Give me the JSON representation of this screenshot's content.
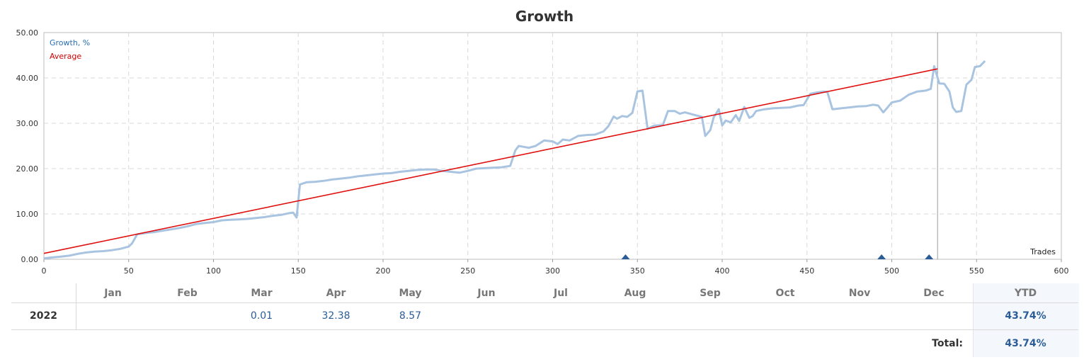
{
  "chart_data": {
    "type": "line",
    "title": "Growth",
    "xlabel": "Trades",
    "ylabel": "",
    "xlim": [
      0,
      600
    ],
    "ylim": [
      0,
      50
    ],
    "x_ticks": [
      0,
      50,
      100,
      150,
      200,
      250,
      300,
      350,
      400,
      450,
      500,
      550,
      600
    ],
    "y_ticks": [
      0,
      10,
      20,
      30,
      40,
      50
    ],
    "grid": true,
    "legend_position": "top-left",
    "end_marker_x": 527,
    "series": [
      {
        "name": "Growth, %",
        "color": "#a9c4e0",
        "points": [
          [
            0,
            0.2
          ],
          [
            5,
            0.4
          ],
          [
            10,
            0.6
          ],
          [
            15,
            0.8
          ],
          [
            20,
            1.2
          ],
          [
            25,
            1.5
          ],
          [
            30,
            1.7
          ],
          [
            35,
            1.8
          ],
          [
            40,
            2.0
          ],
          [
            45,
            2.3
          ],
          [
            50,
            2.8
          ],
          [
            52,
            3.5
          ],
          [
            55,
            5.5
          ],
          [
            60,
            5.8
          ],
          [
            65,
            6.0
          ],
          [
            70,
            6.3
          ],
          [
            75,
            6.6
          ],
          [
            80,
            6.9
          ],
          [
            85,
            7.3
          ],
          [
            90,
            7.8
          ],
          [
            95,
            8.0
          ],
          [
            100,
            8.2
          ],
          [
            105,
            8.6
          ],
          [
            110,
            8.7
          ],
          [
            115,
            8.8
          ],
          [
            120,
            8.9
          ],
          [
            125,
            9.1
          ],
          [
            130,
            9.3
          ],
          [
            135,
            9.6
          ],
          [
            140,
            9.8
          ],
          [
            145,
            10.2
          ],
          [
            147,
            10.3
          ],
          [
            149,
            9.2
          ],
          [
            151,
            16.5
          ],
          [
            155,
            17.0
          ],
          [
            160,
            17.1
          ],
          [
            165,
            17.3
          ],
          [
            170,
            17.6
          ],
          [
            175,
            17.8
          ],
          [
            180,
            18.0
          ],
          [
            185,
            18.3
          ],
          [
            190,
            18.5
          ],
          [
            195,
            18.7
          ],
          [
            200,
            18.9
          ],
          [
            205,
            19.0
          ],
          [
            210,
            19.3
          ],
          [
            215,
            19.5
          ],
          [
            220,
            19.7
          ],
          [
            225,
            19.8
          ],
          [
            230,
            19.8
          ],
          [
            235,
            19.5
          ],
          [
            240,
            19.3
          ],
          [
            245,
            19.1
          ],
          [
            250,
            19.5
          ],
          [
            255,
            20.0
          ],
          [
            260,
            20.1
          ],
          [
            265,
            20.2
          ],
          [
            270,
            20.3
          ],
          [
            275,
            20.6
          ],
          [
            278,
            24.0
          ],
          [
            280,
            25.0
          ],
          [
            283,
            24.8
          ],
          [
            286,
            24.6
          ],
          [
            290,
            25.0
          ],
          [
            295,
            26.2
          ],
          [
            300,
            26.0
          ],
          [
            303,
            25.4
          ],
          [
            306,
            26.4
          ],
          [
            310,
            26.2
          ],
          [
            315,
            27.2
          ],
          [
            320,
            27.4
          ],
          [
            325,
            27.5
          ],
          [
            330,
            28.2
          ],
          [
            333,
            29.4
          ],
          [
            336,
            31.5
          ],
          [
            338,
            31.0
          ],
          [
            341,
            31.6
          ],
          [
            344,
            31.4
          ],
          [
            347,
            32.3
          ],
          [
            350,
            37.0
          ],
          [
            353,
            37.2
          ],
          [
            356,
            28.8
          ],
          [
            360,
            29.5
          ],
          [
            365,
            29.6
          ],
          [
            368,
            32.7
          ],
          [
            372,
            32.7
          ],
          [
            375,
            32.1
          ],
          [
            378,
            32.4
          ],
          [
            382,
            32.0
          ],
          [
            385,
            31.7
          ],
          [
            388,
            31.4
          ],
          [
            390,
            27.2
          ],
          [
            393,
            28.5
          ],
          [
            395,
            31.3
          ],
          [
            398,
            33.1
          ],
          [
            400,
            29.5
          ],
          [
            402,
            30.6
          ],
          [
            405,
            30.2
          ],
          [
            408,
            31.8
          ],
          [
            410,
            30.5
          ],
          [
            413,
            33.6
          ],
          [
            416,
            31.2
          ],
          [
            418,
            31.6
          ],
          [
            420,
            32.7
          ],
          [
            425,
            33.1
          ],
          [
            430,
            33.3
          ],
          [
            435,
            33.4
          ],
          [
            440,
            33.5
          ],
          [
            445,
            33.9
          ],
          [
            448,
            34.0
          ],
          [
            452,
            36.5
          ],
          [
            456,
            36.8
          ],
          [
            460,
            37.0
          ],
          [
            462,
            36.9
          ],
          [
            465,
            33.1
          ],
          [
            470,
            33.3
          ],
          [
            475,
            33.5
          ],
          [
            480,
            33.7
          ],
          [
            485,
            33.8
          ],
          [
            489,
            34.1
          ],
          [
            492,
            33.9
          ],
          [
            495,
            32.4
          ],
          [
            498,
            33.7
          ],
          [
            500,
            34.6
          ],
          [
            505,
            35.0
          ],
          [
            510,
            36.3
          ],
          [
            515,
            37.0
          ],
          [
            520,
            37.2
          ],
          [
            523,
            37.6
          ],
          [
            525,
            42.6
          ],
          [
            528,
            38.8
          ],
          [
            531,
            38.7
          ],
          [
            534,
            37.0
          ],
          [
            536,
            33.5
          ],
          [
            538,
            32.5
          ],
          [
            541,
            32.7
          ],
          [
            544,
            38.5
          ],
          [
            547,
            39.6
          ],
          [
            549,
            42.4
          ],
          [
            552,
            42.6
          ],
          [
            555,
            43.74
          ]
        ]
      },
      {
        "name": "Average",
        "color": "#e01010",
        "points": [
          [
            0,
            1.3
          ],
          [
            527,
            42.0
          ]
        ]
      }
    ],
    "trade_markers": [
      343,
      494,
      522
    ]
  },
  "table": {
    "months": [
      "Jan",
      "Feb",
      "Mar",
      "Apr",
      "May",
      "Jun",
      "Jul",
      "Aug",
      "Sep",
      "Oct",
      "Nov",
      "Dec"
    ],
    "ytd_header": "YTD",
    "rows": [
      {
        "year": "2022",
        "values": [
          "",
          "",
          "0.01",
          "32.38",
          "8.57",
          "",
          "",
          "",
          "",
          "",
          "",
          ""
        ],
        "ytd": "43.74%"
      }
    ],
    "total_label": "Total:",
    "total_value": "43.74%"
  }
}
